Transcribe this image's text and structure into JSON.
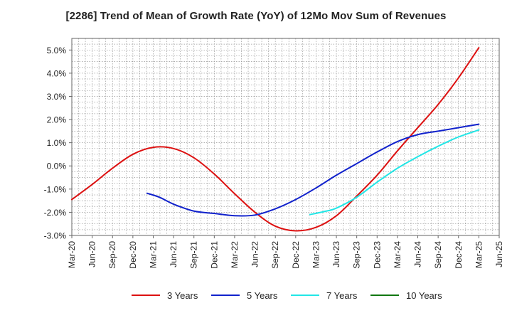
{
  "chart_data": {
    "type": "line",
    "title": "[2286]  Trend of Mean of Growth Rate (YoY) of 12Mo Mov Sum of Revenues",
    "xlabel": "",
    "ylabel": "",
    "ylim": [
      -3.0,
      5.5
    ],
    "yticks": [
      -3.0,
      -2.0,
      -1.0,
      0.0,
      1.0,
      2.0,
      3.0,
      4.0,
      5.0
    ],
    "ytick_labels": [
      "-3.0%",
      "-2.0%",
      "-1.0%",
      "0.0%",
      "1.0%",
      "2.0%",
      "3.0%",
      "4.0%",
      "5.0%"
    ],
    "categories": [
      "Mar-20",
      "Jun-20",
      "Sep-20",
      "Dec-20",
      "Mar-21",
      "Jun-21",
      "Sep-21",
      "Dec-21",
      "Mar-22",
      "Jun-22",
      "Sep-22",
      "Dec-22",
      "Mar-23",
      "Jun-23",
      "Sep-23",
      "Dec-23",
      "Mar-24",
      "Jun-24",
      "Sep-24",
      "Dec-24",
      "Mar-25",
      "Jun-25"
    ],
    "grid": true,
    "series": [
      {
        "name": "3 Years",
        "color": "#dd1111",
        "points": [
          [
            0,
            -1.45
          ],
          [
            1,
            -0.8
          ],
          [
            2,
            -0.1
          ],
          [
            3,
            0.5
          ],
          [
            4,
            0.8
          ],
          [
            5,
            0.75
          ],
          [
            6,
            0.35
          ],
          [
            7,
            -0.35
          ],
          [
            8,
            -1.2
          ],
          [
            9,
            -2.0
          ],
          [
            10,
            -2.6
          ],
          [
            11,
            -2.8
          ],
          [
            12,
            -2.65
          ],
          [
            13,
            -2.15
          ],
          [
            14,
            -1.3
          ],
          [
            15,
            -0.4
          ],
          [
            16,
            0.65
          ],
          [
            17,
            1.65
          ],
          [
            18,
            2.65
          ],
          [
            19,
            3.8
          ],
          [
            20,
            5.1
          ]
        ]
      },
      {
        "name": "5 Years",
        "color": "#1122cc",
        "points": [
          [
            3.7,
            -1.18
          ],
          [
            4.3,
            -1.35
          ],
          [
            5,
            -1.65
          ],
          [
            6,
            -1.95
          ],
          [
            7,
            -2.05
          ],
          [
            8,
            -2.15
          ],
          [
            9,
            -2.12
          ],
          [
            10,
            -1.85
          ],
          [
            11,
            -1.45
          ],
          [
            12,
            -0.95
          ],
          [
            13,
            -0.4
          ],
          [
            14,
            0.1
          ],
          [
            15,
            0.6
          ],
          [
            16,
            1.05
          ],
          [
            17,
            1.35
          ],
          [
            18,
            1.5
          ],
          [
            19,
            1.65
          ],
          [
            20,
            1.8
          ]
        ]
      },
      {
        "name": "7 Years",
        "color": "#22e6e6",
        "points": [
          [
            11.7,
            -2.1
          ],
          [
            12.5,
            -1.95
          ],
          [
            13,
            -1.82
          ],
          [
            14,
            -1.35
          ],
          [
            15,
            -0.7
          ],
          [
            16,
            -0.1
          ],
          [
            17,
            0.4
          ],
          [
            18,
            0.85
          ],
          [
            19,
            1.25
          ],
          [
            20,
            1.55
          ]
        ]
      },
      {
        "name": "10 Years",
        "color": "#117711",
        "points": []
      }
    ]
  }
}
